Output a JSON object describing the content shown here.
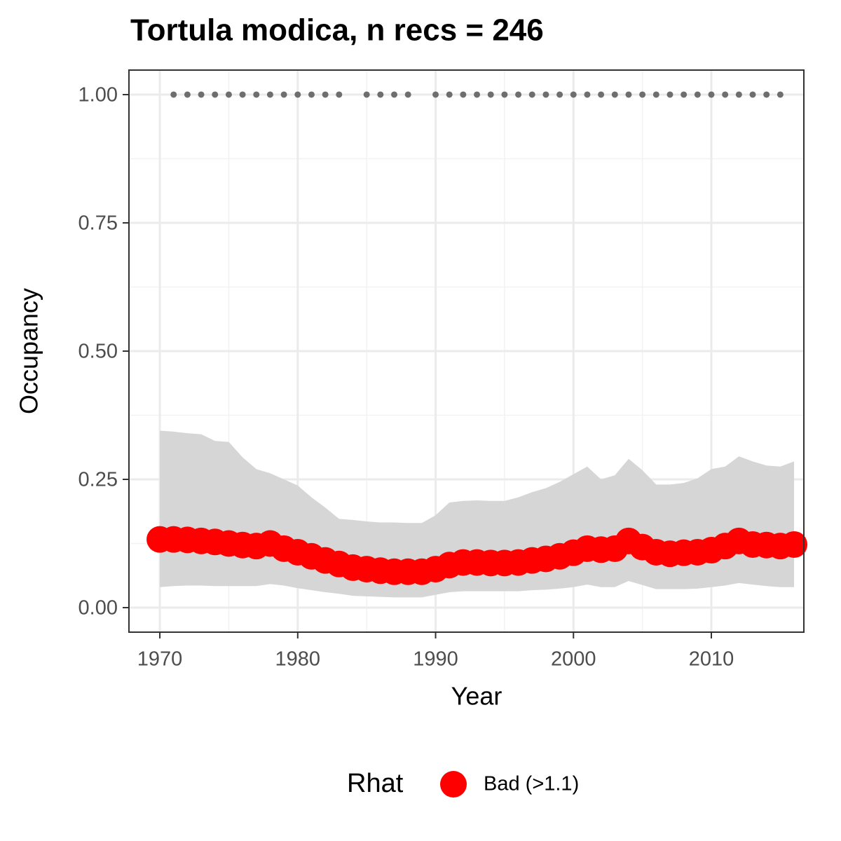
{
  "chart_data": {
    "type": "line",
    "title": "Tortula modica, n recs = 246",
    "x_label": "Year",
    "y_label": "Occupancy",
    "x": [
      1970,
      1971,
      1972,
      1973,
      1974,
      1975,
      1976,
      1977,
      1978,
      1979,
      1980,
      1981,
      1982,
      1983,
      1984,
      1985,
      1986,
      1987,
      1988,
      1989,
      1990,
      1991,
      1992,
      1993,
      1994,
      1995,
      1996,
      1997,
      1998,
      1999,
      2000,
      2001,
      2002,
      2003,
      2004,
      2005,
      2006,
      2007,
      2008,
      2009,
      2010,
      2011,
      2012,
      2013,
      2014,
      2015,
      2016
    ],
    "series": [
      {
        "name": "Bad (>1.1)",
        "color": "#ff0000",
        "values": [
          0.133,
          0.133,
          0.132,
          0.13,
          0.128,
          0.125,
          0.122,
          0.12,
          0.125,
          0.115,
          0.108,
          0.1,
          0.092,
          0.085,
          0.078,
          0.075,
          0.072,
          0.07,
          0.07,
          0.07,
          0.075,
          0.083,
          0.088,
          0.088,
          0.087,
          0.087,
          0.088,
          0.092,
          0.095,
          0.1,
          0.107,
          0.115,
          0.113,
          0.115,
          0.13,
          0.118,
          0.108,
          0.105,
          0.107,
          0.108,
          0.112,
          0.12,
          0.13,
          0.123,
          0.122,
          0.12,
          0.123
        ],
        "lower": [
          0.04,
          0.042,
          0.043,
          0.043,
          0.042,
          0.042,
          0.042,
          0.042,
          0.046,
          0.043,
          0.038,
          0.034,
          0.03,
          0.027,
          0.023,
          0.022,
          0.021,
          0.02,
          0.02,
          0.02,
          0.025,
          0.03,
          0.032,
          0.032,
          0.032,
          0.032,
          0.032,
          0.034,
          0.035,
          0.037,
          0.04,
          0.045,
          0.04,
          0.04,
          0.052,
          0.044,
          0.036,
          0.036,
          0.036,
          0.037,
          0.04,
          0.043,
          0.048,
          0.045,
          0.042,
          0.04,
          0.04
        ],
        "upper": [
          0.345,
          0.343,
          0.34,
          0.338,
          0.325,
          0.323,
          0.293,
          0.27,
          0.262,
          0.25,
          0.238,
          0.215,
          0.195,
          0.173,
          0.171,
          0.168,
          0.166,
          0.166,
          0.165,
          0.165,
          0.18,
          0.205,
          0.208,
          0.209,
          0.208,
          0.208,
          0.215,
          0.225,
          0.233,
          0.245,
          0.26,
          0.275,
          0.25,
          0.258,
          0.29,
          0.268,
          0.24,
          0.24,
          0.243,
          0.252,
          0.27,
          0.275,
          0.295,
          0.285,
          0.277,
          0.275,
          0.285
        ],
        "band_color": "#d6d6d6"
      }
    ],
    "records": {
      "x": [
        1971,
        1972,
        1973,
        1974,
        1975,
        1976,
        1977,
        1978,
        1979,
        1980,
        1981,
        1982,
        1983,
        1985,
        1986,
        1987,
        1988,
        1990,
        1991,
        1992,
        1993,
        1994,
        1995,
        1996,
        1997,
        1998,
        1999,
        2000,
        2001,
        2002,
        2003,
        2004,
        2005,
        2006,
        2007,
        2008,
        2009,
        2010,
        2011,
        2012,
        2013,
        2014,
        2015
      ],
      "values": [
        1,
        1,
        1,
        1,
        1,
        1,
        1,
        1,
        1,
        1,
        1,
        1,
        1,
        1,
        1,
        1,
        1,
        1,
        1,
        1,
        1,
        1,
        1,
        1,
        1,
        1,
        1,
        1,
        1,
        1,
        1,
        1,
        1,
        1,
        1,
        1,
        1,
        1,
        1,
        1,
        1,
        1,
        1
      ],
      "color": "#6e6e6e"
    },
    "xlim": [
      1967.76,
      2016.71
    ],
    "ylim": [
      -0.0478,
      1.0478
    ],
    "xticks": [
      1970,
      1980,
      1990,
      2000,
      2010
    ],
    "yticks": [
      {
        "value": 0,
        "label": "0.00"
      },
      {
        "value": 0.25,
        "label": "0.25"
      },
      {
        "value": 0.5,
        "label": "0.50"
      },
      {
        "value": 0.75,
        "label": "0.75"
      },
      {
        "value": 1,
        "label": "1.00"
      }
    ],
    "grid": true,
    "legend_title": "Rhat",
    "legend": "bottom"
  }
}
